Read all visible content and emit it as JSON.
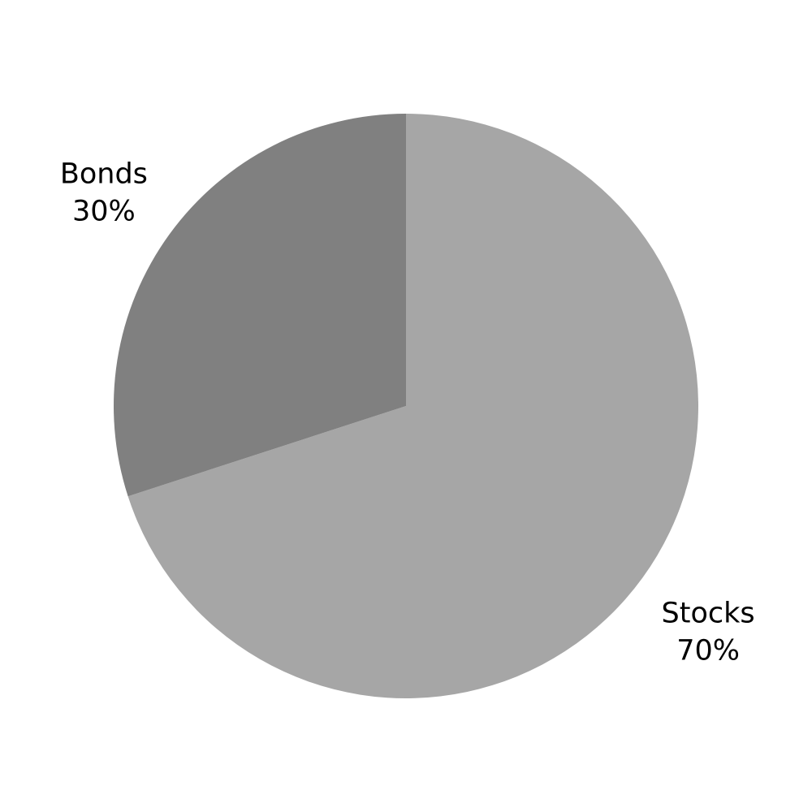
{
  "chart_data": {
    "type": "pie",
    "title": "",
    "slices": [
      {
        "label": "Stocks",
        "value": 70,
        "value_label": "70%",
        "color": "#a6a6a6"
      },
      {
        "label": "Bonds",
        "value": 30,
        "value_label": "30%",
        "color": "#808080"
      }
    ],
    "start_angle_deg": 0,
    "direction": "clockwise"
  }
}
